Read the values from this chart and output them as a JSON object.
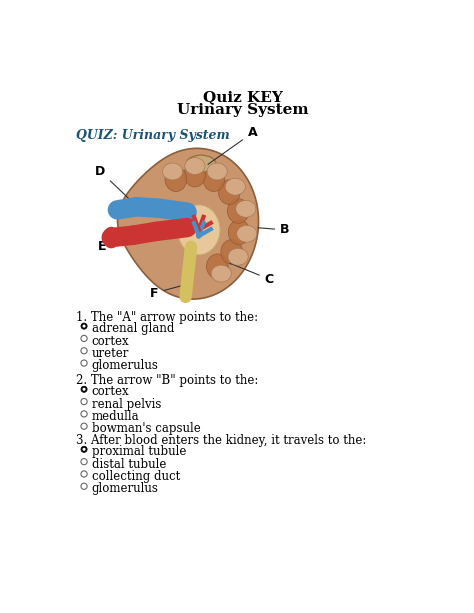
{
  "title_line1": "Quiz KEY",
  "title_line2": "Urinary System",
  "quiz_header": "QUIZ: Urinary System",
  "quiz_header_color": "#1A5276",
  "background_color": "#ffffff",
  "q1_text": "1. The \"A\" arrow points to the:",
  "q1_options": [
    "adrenal gland",
    "cortex",
    "ureter",
    "glomerulus"
  ],
  "q1_correct": 0,
  "q2_text": "2. The arrow \"B\" points to the:",
  "q2_options": [
    "cortex",
    "renal pelvis",
    "medulla",
    "bowman's capsule"
  ],
  "q2_correct": 0,
  "q3_text": "3. After blood enters the kidney, it travels to the:",
  "q3_options": [
    "proximal tubule",
    "distal tubule",
    "collecting duct",
    "glomerulus"
  ],
  "q3_correct": 0,
  "kidney_outer_color": "#C8956C",
  "kidney_cortex_color": "#D4A882",
  "medulla_color": "#C07840",
  "pelvis_color": "#E8C89A",
  "vein_color": "#4A90C8",
  "artery_color": "#CC3333",
  "vessels_dark": "#1A3A7A",
  "ureter_color": "#D4C060",
  "adrenal_color": "#C8A878",
  "label_fontsize": 9,
  "title_fontsize": 11,
  "body_fontsize": 8.5,
  "radio_fontsize": 7
}
